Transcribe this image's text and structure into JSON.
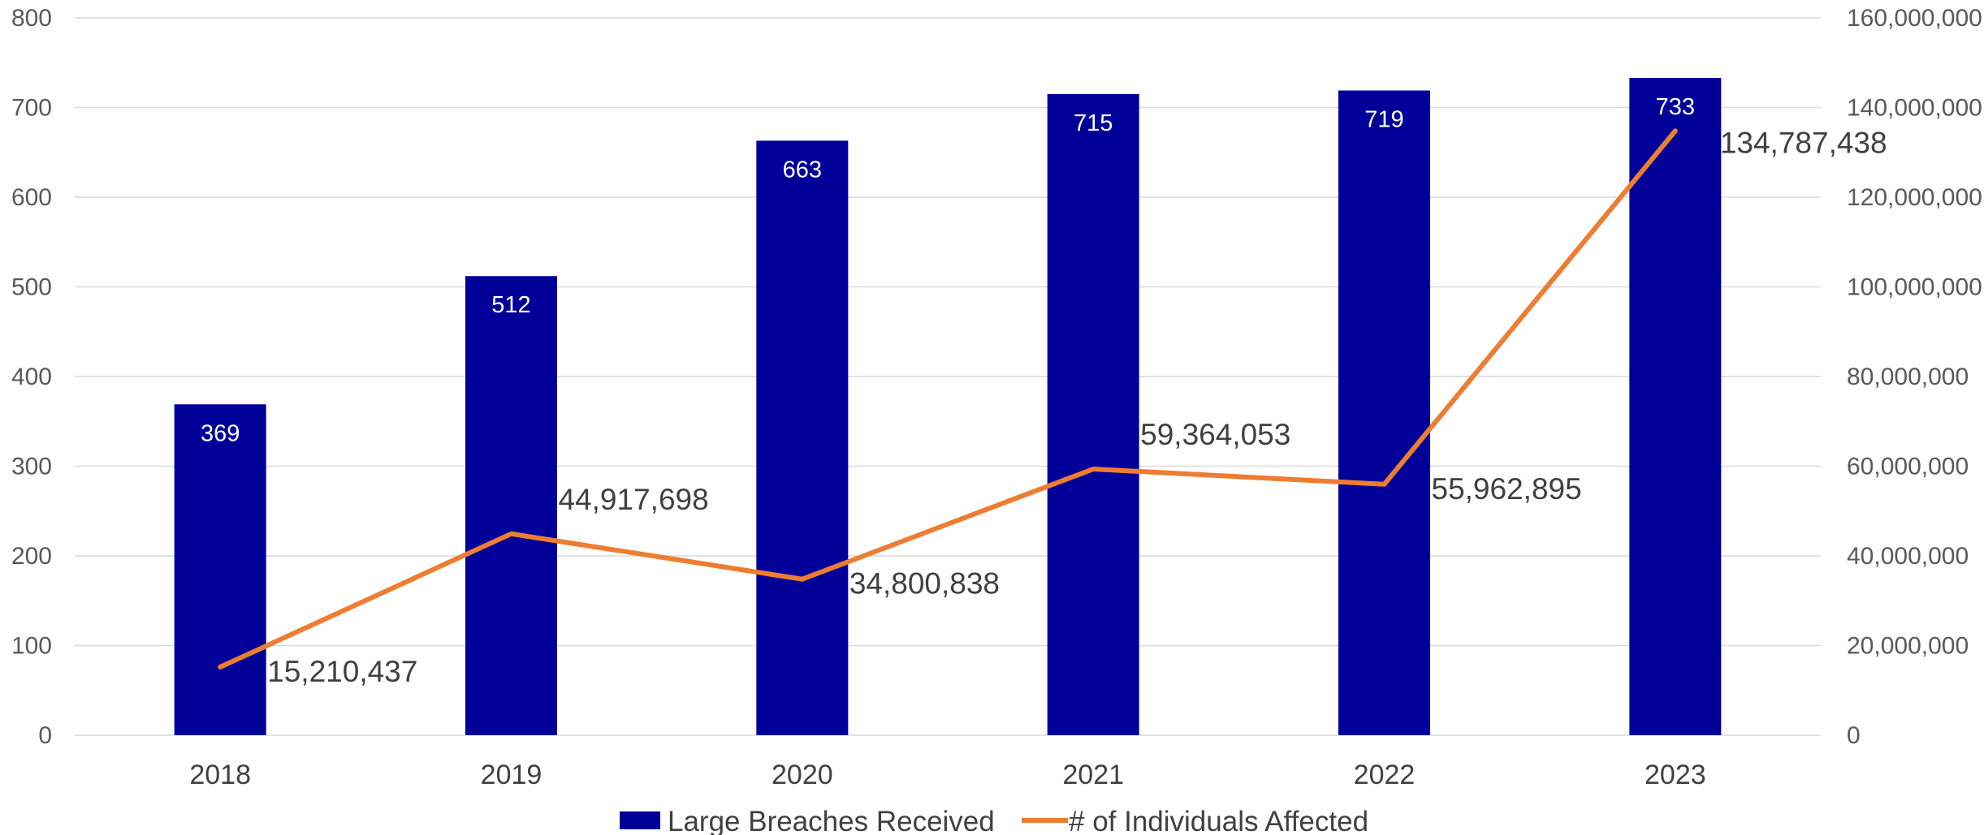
{
  "chart_data": {
    "type": "bar",
    "categories": [
      "2018",
      "2019",
      "2020",
      "2021",
      "2022",
      "2023"
    ],
    "series": [
      {
        "name": "Large Breaches Received",
        "type": "bar",
        "axis": "left",
        "color": "#000099",
        "values": [
          369,
          512,
          663,
          715,
          719,
          733
        ],
        "labels": [
          "369",
          "512",
          "663",
          "715",
          "719",
          "733"
        ]
      },
      {
        "name": "# of Individuals Affected",
        "type": "line",
        "axis": "right",
        "color": "#ED7D31",
        "values": [
          15210437,
          44917698,
          34800838,
          59364053,
          55962895,
          134787438
        ],
        "labels": [
          "15,210,437",
          "44,917,698",
          "34,800,838",
          "59,364,053",
          "55,962,895",
          "134,787,438"
        ]
      }
    ],
    "y_left": {
      "lim": [
        0,
        800
      ],
      "ticks": [
        0,
        100,
        200,
        300,
        400,
        500,
        600,
        700,
        800
      ],
      "tick_labels": [
        "0",
        "100",
        "200",
        "300",
        "400",
        "500",
        "600",
        "700",
        "800"
      ]
    },
    "y_right": {
      "lim": [
        0,
        160000000
      ],
      "ticks": [
        0,
        20000000,
        40000000,
        60000000,
        80000000,
        100000000,
        120000000,
        140000000,
        160000000
      ],
      "tick_labels": [
        "0",
        "20,000,000",
        "40,000,000",
        "60,000,000",
        "80,000,000",
        "100,000,000",
        "120,000,000",
        "140,000,000",
        "160,000,000"
      ]
    },
    "title": "",
    "xlabel": "",
    "ylabel": "",
    "grid": true,
    "legend": "bottom-center"
  }
}
